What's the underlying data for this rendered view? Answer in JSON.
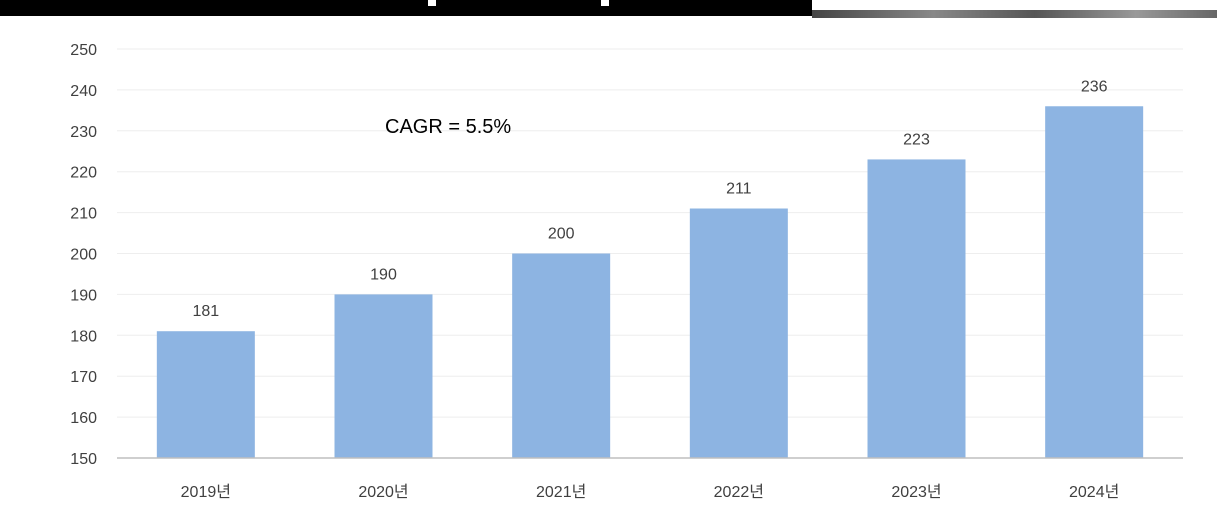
{
  "chart_data": {
    "type": "bar",
    "categories": [
      "2019년",
      "2020년",
      "2021년",
      "2022년",
      "2023년",
      "2024년"
    ],
    "values": [
      181,
      190,
      200,
      211,
      223,
      236
    ],
    "data_labels": [
      "181",
      "190",
      "200",
      "211",
      "223",
      "236"
    ],
    "ylim": [
      150,
      250
    ],
    "yticks": [
      "150",
      "160",
      "170",
      "180",
      "190",
      "200",
      "210",
      "220",
      "230",
      "240",
      "250"
    ],
    "annotation": "CAGR = 5.5%",
    "grid": true,
    "bar_color": "#8DB4E2",
    "grid_color": "#EEEEEE",
    "axis_color": "#BFBFBF"
  }
}
